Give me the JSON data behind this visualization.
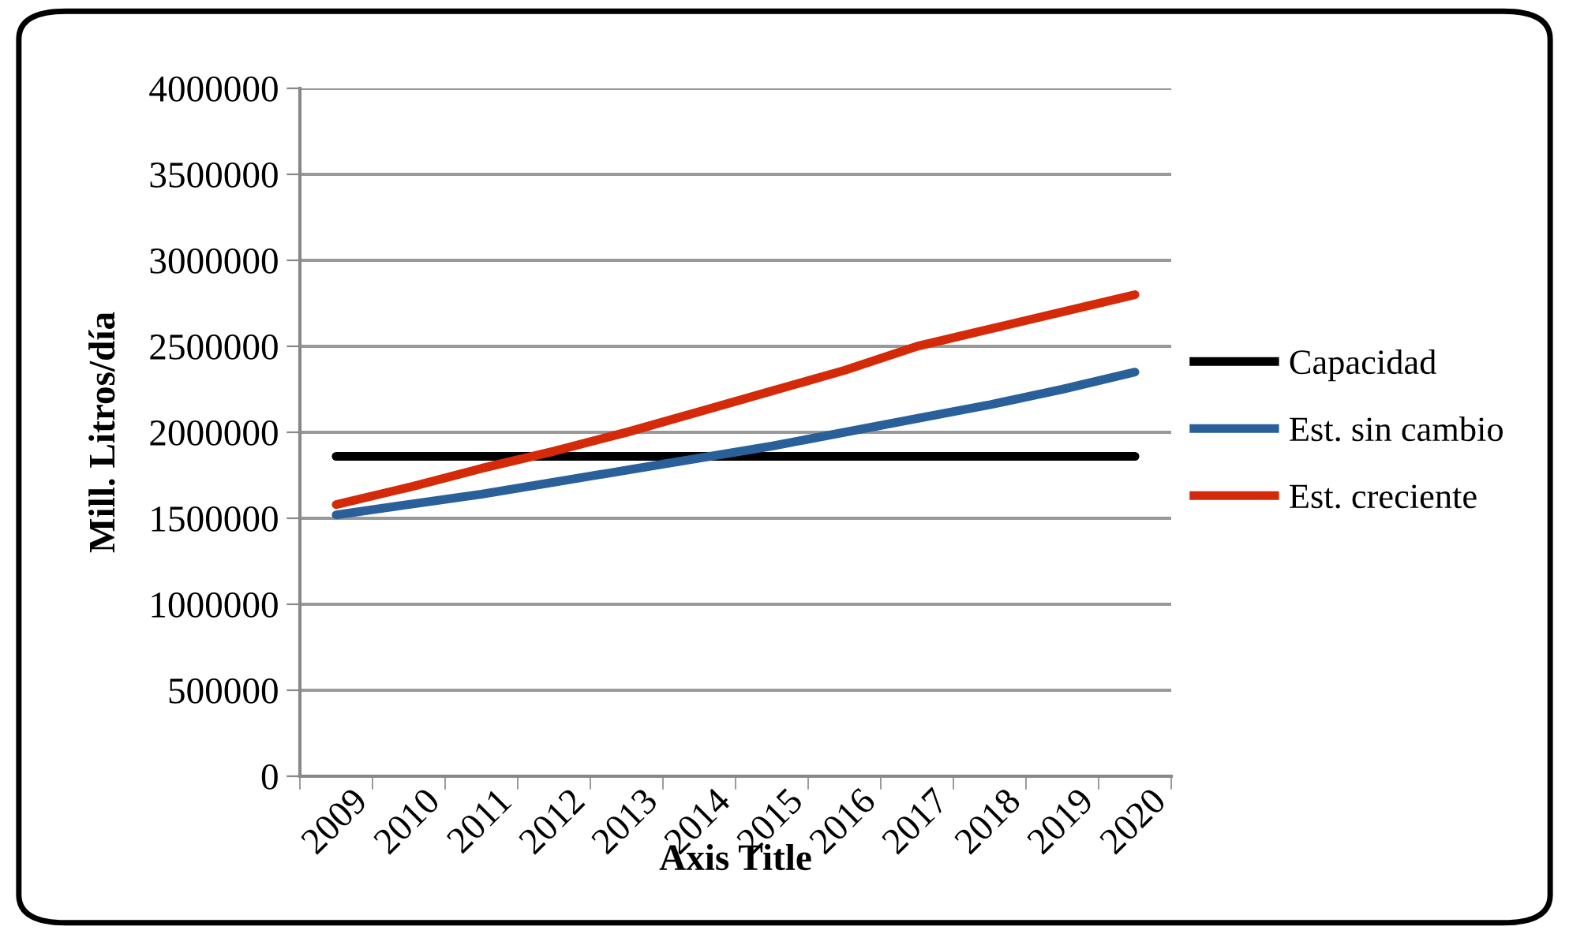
{
  "chart_data": {
    "type": "line",
    "xlabel": "Axis Title",
    "ylabel": "Mill. Litros/día",
    "categories": [
      "2009",
      "2010",
      "2011",
      "2012",
      "2013",
      "2014",
      "2015",
      "2016",
      "2017",
      "2018",
      "2019",
      "2020"
    ],
    "series": [
      {
        "name": "Capacidad",
        "color": "#000000",
        "values": [
          1860000,
          1860000,
          1860000,
          1860000,
          1860000,
          1860000,
          1860000,
          1860000,
          1860000,
          1860000,
          1860000,
          1860000
        ]
      },
      {
        "name": "Est. sin cambio",
        "color": "#2a6099",
        "values": [
          1520000,
          1580000,
          1640000,
          1710000,
          1780000,
          1850000,
          1920000,
          2000000,
          2080000,
          2160000,
          2250000,
          2350000
        ]
      },
      {
        "name": "Est. creciente",
        "color": "#d42a0a",
        "values": [
          1580000,
          1680000,
          1790000,
          1890000,
          2000000,
          2120000,
          2240000,
          2360000,
          2500000,
          2600000,
          2700000,
          2800000
        ]
      }
    ],
    "ylim": [
      0,
      4000000
    ],
    "yticks": [
      0,
      500000,
      1000000,
      1500000,
      2000000,
      2500000,
      3000000,
      3500000,
      4000000
    ],
    "grid": "y",
    "legend": "right",
    "marker": "none",
    "line_style": "solid"
  }
}
